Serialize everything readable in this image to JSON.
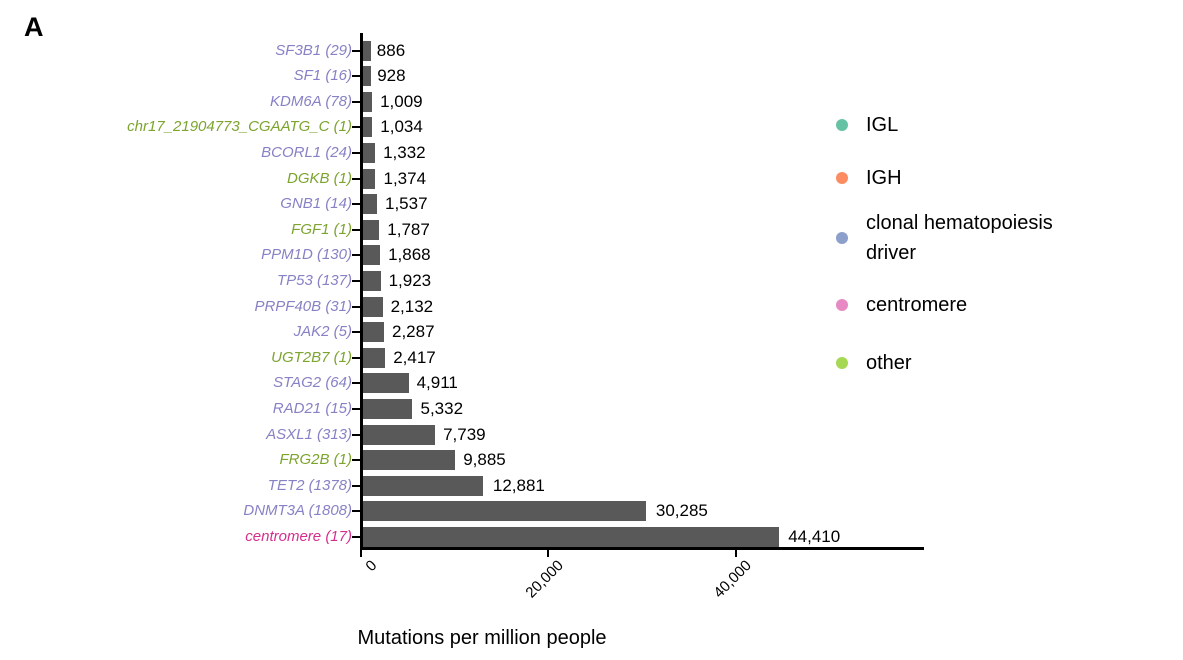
{
  "panel_label": "A",
  "colors": {
    "bar": "#595959",
    "axis": "#000000",
    "label_colors": {
      "clonal hematopoiesis driver": "#8781C5",
      "centromere": "#D62E8D",
      "other": "#7CA42E"
    }
  },
  "chart_data": {
    "type": "bar",
    "orientation": "horizontal",
    "title": "",
    "xlabel": "Mutations per million people",
    "ylabel": "",
    "xlim": [
      0,
      60000
    ],
    "grid": false,
    "legend_position": "right",
    "bar_color": "#595959",
    "x_ticks": [
      {
        "value": 0,
        "label": "0"
      },
      {
        "value": 20000,
        "label": "20,000"
      },
      {
        "value": 40000,
        "label": "40,000"
      }
    ],
    "bars": [
      {
        "label": "SF3B1 (29)",
        "value": 886,
        "value_label": "886",
        "category": "clonal hematopoiesis driver"
      },
      {
        "label": "SF1 (16)",
        "value": 928,
        "value_label": "928",
        "category": "clonal hematopoiesis driver"
      },
      {
        "label": "KDM6A (78)",
        "value": 1009,
        "value_label": "1,009",
        "category": "clonal hematopoiesis driver"
      },
      {
        "label": "chr17_21904773_CGAATG_C (1)",
        "value": 1034,
        "value_label": "1,034",
        "category": "other"
      },
      {
        "label": "BCORL1 (24)",
        "value": 1332,
        "value_label": "1,332",
        "category": "clonal hematopoiesis driver"
      },
      {
        "label": "DGKB (1)",
        "value": 1374,
        "value_label": "1,374",
        "category": "other"
      },
      {
        "label": "GNB1 (14)",
        "value": 1537,
        "value_label": "1,537",
        "category": "clonal hematopoiesis driver"
      },
      {
        "label": "FGF1 (1)",
        "value": 1787,
        "value_label": "1,787",
        "category": "other"
      },
      {
        "label": "PPM1D (130)",
        "value": 1868,
        "value_label": "1,868",
        "category": "clonal hematopoiesis driver"
      },
      {
        "label": "TP53 (137)",
        "value": 1923,
        "value_label": "1,923",
        "category": "clonal hematopoiesis driver"
      },
      {
        "label": "PRPF40B (31)",
        "value": 2132,
        "value_label": "2,132",
        "category": "clonal hematopoiesis driver"
      },
      {
        "label": "JAK2 (5)",
        "value": 2287,
        "value_label": "2,287",
        "category": "clonal hematopoiesis driver"
      },
      {
        "label": "UGT2B7 (1)",
        "value": 2417,
        "value_label": "2,417",
        "category": "other"
      },
      {
        "label": "STAG2 (64)",
        "value": 4911,
        "value_label": "4,911",
        "category": "clonal hematopoiesis driver"
      },
      {
        "label": "RAD21 (15)",
        "value": 5332,
        "value_label": "5,332",
        "category": "clonal hematopoiesis driver"
      },
      {
        "label": "ASXL1 (313)",
        "value": 7739,
        "value_label": "7,739",
        "category": "clonal hematopoiesis driver"
      },
      {
        "label": "FRG2B (1)",
        "value": 9885,
        "value_label": "9,885",
        "category": "other"
      },
      {
        "label": "TET2 (1378)",
        "value": 12881,
        "value_label": "12,881",
        "category": "clonal hematopoiesis driver"
      },
      {
        "label": "DNMT3A (1808)",
        "value": 30285,
        "value_label": "30,285",
        "category": "clonal hematopoiesis driver"
      },
      {
        "label": "centromere (17)",
        "value": 44410,
        "value_label": "44,410",
        "category": "centromere"
      }
    ],
    "legend": [
      {
        "label": "IGL",
        "color": "#66C2A5"
      },
      {
        "label": "IGH",
        "color": "#FC8D62"
      },
      {
        "label": "clonal hematopoiesis driver",
        "color": "#8DA0CB"
      },
      {
        "label": "centromere",
        "color": "#E78AC3"
      },
      {
        "label": "other",
        "color": "#A6D854"
      }
    ]
  }
}
